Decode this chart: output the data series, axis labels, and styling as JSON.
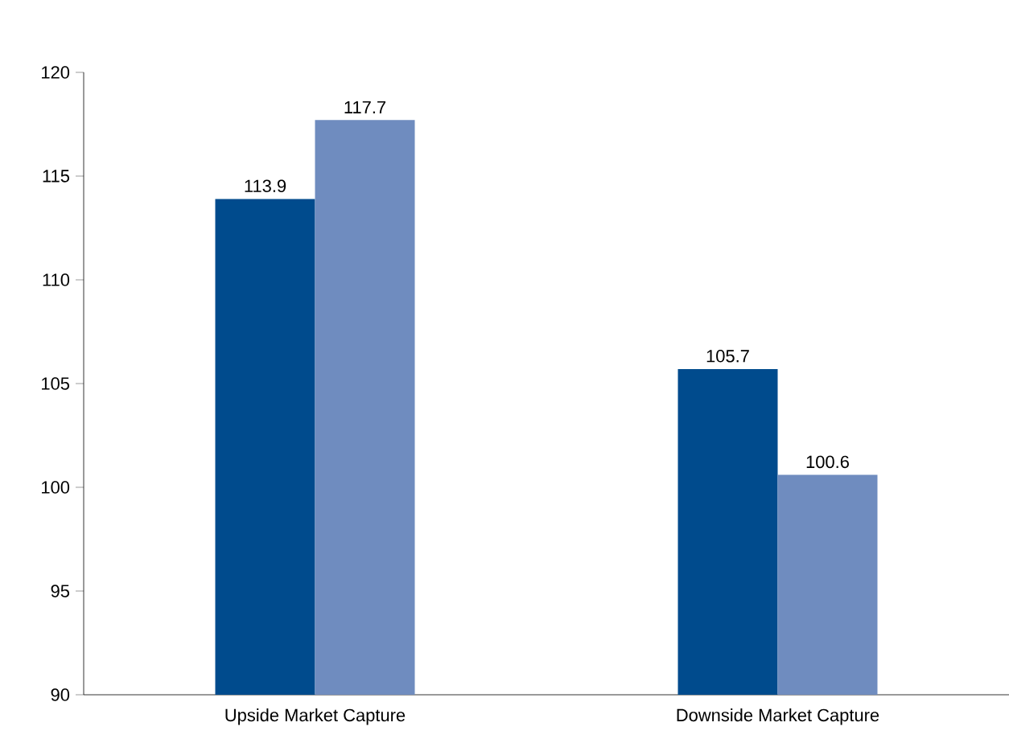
{
  "chart_data": {
    "type": "bar",
    "categories": [
      "Upside Market Capture",
      "Downside Market Capture"
    ],
    "series": [
      {
        "color": "#004b8d",
        "values": [
          113.9,
          105.7
        ]
      },
      {
        "color": "#6f8cbf",
        "values": [
          117.7,
          100.6
        ]
      }
    ],
    "ylim": [
      90,
      120
    ],
    "yticks": [
      90,
      95,
      100,
      105,
      110,
      115,
      120
    ],
    "data_labels": true,
    "grid": false
  }
}
